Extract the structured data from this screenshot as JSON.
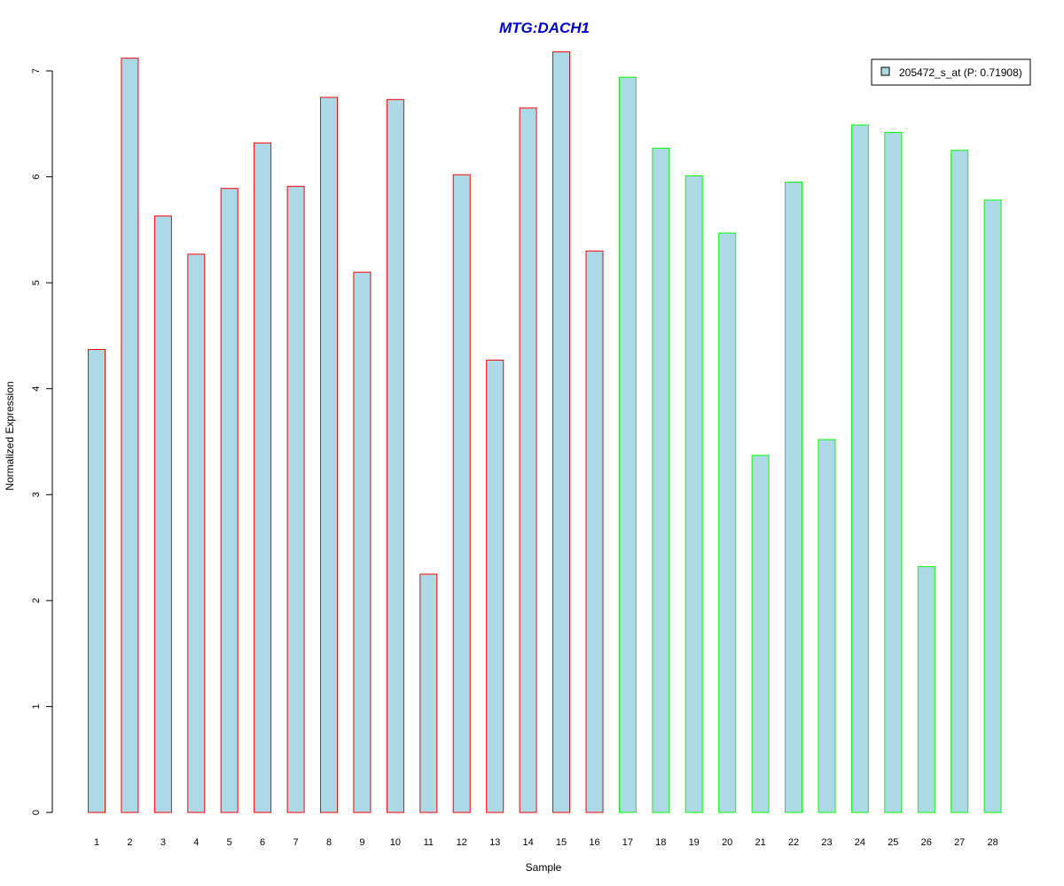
{
  "chart_data": {
    "type": "bar",
    "title": "MTG:DACH1",
    "xlabel": "Sample",
    "ylabel": "Normalized Expression",
    "categories": [
      "1",
      "2",
      "3",
      "4",
      "5",
      "6",
      "7",
      "8",
      "9",
      "10",
      "11",
      "12",
      "13",
      "14",
      "15",
      "16",
      "17",
      "18",
      "19",
      "20",
      "21",
      "22",
      "23",
      "24",
      "25",
      "26",
      "27",
      "28"
    ],
    "series": [
      {
        "name": "205472_s_at (P: 0.71908)",
        "values": [
          4.37,
          7.12,
          5.63,
          5.27,
          5.89,
          6.32,
          5.91,
          6.75,
          5.1,
          6.73,
          2.25,
          6.02,
          4.27,
          6.65,
          7.18,
          5.3,
          6.94,
          6.27,
          6.01,
          5.47,
          3.37,
          5.95,
          3.52,
          6.49,
          6.42,
          2.32,
          6.25,
          5.78
        ]
      }
    ],
    "groups": [
      "red",
      "red",
      "red",
      "red",
      "red",
      "red",
      "red",
      "red",
      "red",
      "red",
      "red",
      "red",
      "red",
      "red",
      "red",
      "red",
      "green",
      "green",
      "green",
      "green",
      "green",
      "green",
      "green",
      "green",
      "green",
      "green",
      "green",
      "green"
    ],
    "yticks": [
      0,
      1,
      2,
      3,
      4,
      5,
      6,
      7
    ],
    "ylim": [
      0,
      7.2
    ],
    "grid": false,
    "legend_position": "top-right",
    "colors": {
      "bar_fill": "#add8e6",
      "group_red_border": "#ff0000",
      "group_green_border": "#00ff00",
      "title": "#0000cd",
      "axis": "#000000"
    }
  }
}
